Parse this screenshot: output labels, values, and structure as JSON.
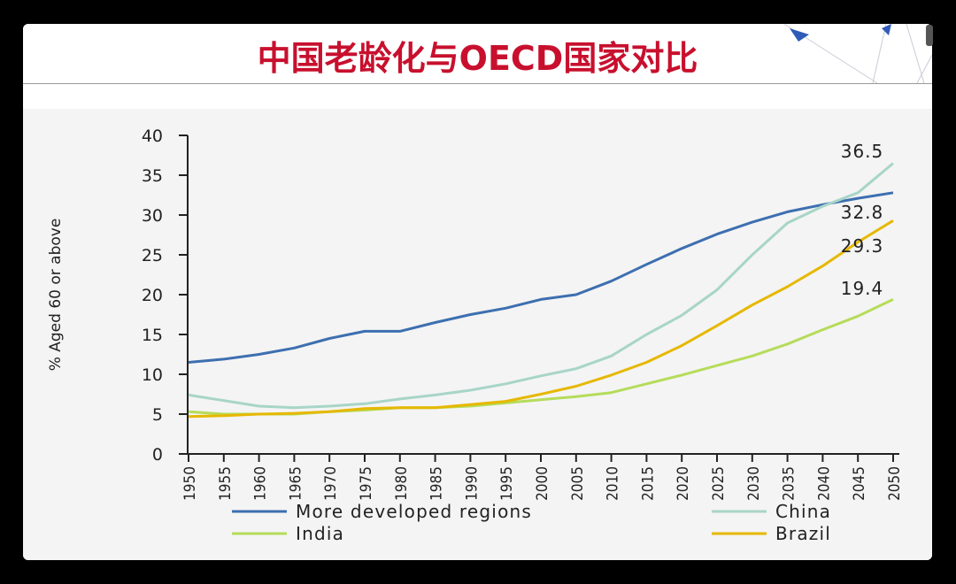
{
  "slide": {
    "title": "中国老龄化与OECD国家对比"
  },
  "chart_data": {
    "type": "line",
    "ylabel": "% Aged 60 or above",
    "xlabel": "",
    "ylim": [
      0,
      40
    ],
    "yticks": [
      0,
      5,
      10,
      15,
      20,
      25,
      30,
      35,
      40
    ],
    "x": [
      "1950",
      "1955",
      "1960",
      "1965",
      "1970",
      "1975",
      "1980",
      "1985",
      "1990",
      "1995",
      "2000",
      "2005",
      "2010",
      "2015",
      "2020",
      "2025",
      "2030",
      "2035",
      "2040",
      "2045",
      "2050"
    ],
    "legend_position": "bottom",
    "grid": false,
    "series": [
      {
        "name": "More developed regions",
        "color": "#3d6fb0",
        "values": [
          11.5,
          11.9,
          12.5,
          13.3,
          14.5,
          15.4,
          15.4,
          16.5,
          17.5,
          18.3,
          19.4,
          20.0,
          21.7,
          23.8,
          25.8,
          27.6,
          29.1,
          30.4,
          31.3,
          32.1,
          32.8
        ]
      },
      {
        "name": "China",
        "color": "#a8d5c8",
        "values": [
          7.4,
          6.7,
          6.0,
          5.8,
          6.0,
          6.3,
          6.9,
          7.4,
          8.0,
          8.8,
          9.8,
          10.7,
          12.3,
          15.0,
          17.4,
          20.6,
          25.0,
          29.0,
          31.1,
          32.8,
          36.5
        ]
      },
      {
        "name": "India",
        "color": "#b5dc5a",
        "values": [
          5.3,
          5.0,
          5.0,
          5.0,
          5.3,
          5.5,
          5.8,
          5.8,
          6.0,
          6.4,
          6.8,
          7.2,
          7.7,
          8.8,
          9.9,
          11.1,
          12.3,
          13.8,
          15.6,
          17.3,
          19.4
        ]
      },
      {
        "name": "Brazil",
        "color": "#e6b800",
        "values": [
          4.7,
          4.8,
          5.0,
          5.1,
          5.3,
          5.7,
          5.8,
          5.8,
          6.2,
          6.6,
          7.5,
          8.5,
          9.9,
          11.5,
          13.6,
          16.1,
          18.7,
          21.0,
          23.6,
          26.6,
          29.3
        ]
      }
    ],
    "annotations": [
      "36.5",
      "32.8",
      "29.3",
      "19.4"
    ]
  }
}
